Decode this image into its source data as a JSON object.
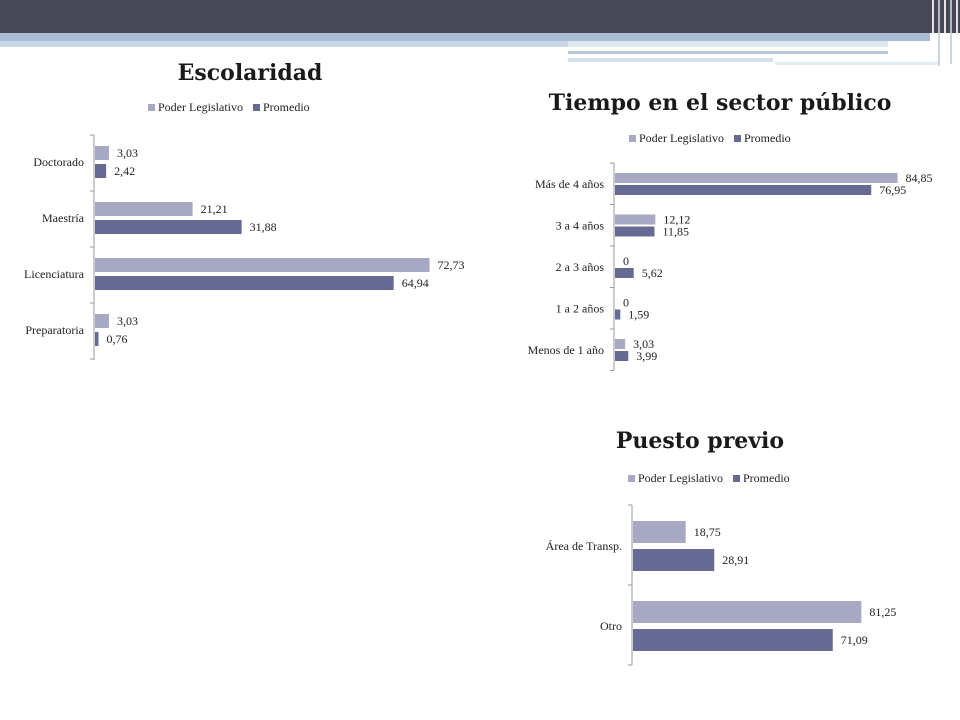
{
  "colors": {
    "poder_legislativo": "#a7a9c2",
    "promedio": "#656b92",
    "axis": "#9a9a9a"
  },
  "chart_data": [
    {
      "type": "bar",
      "orientation": "horizontal",
      "title": "Escolaridad",
      "legend": [
        "Poder Legislativo",
        "Promedio"
      ],
      "legend_position": "top",
      "categories": [
        "Doctorado",
        "Maestría",
        "Licenciatura",
        "Preparatoria"
      ],
      "series": [
        {
          "name": "Poder Legislativo",
          "values": [
            3.03,
            21.21,
            72.73,
            3.03
          ],
          "labels": [
            "3,03",
            "21,21",
            "72,73",
            "3,03"
          ]
        },
        {
          "name": "Promedio",
          "values": [
            2.42,
            31.88,
            64.94,
            0.76
          ],
          "labels": [
            "2,42",
            "31,88",
            "64,94",
            "0,76"
          ]
        }
      ],
      "xlim": [
        0,
        80
      ],
      "grid": false
    },
    {
      "type": "bar",
      "orientation": "horizontal",
      "title": "Tiempo en el sector público",
      "legend": [
        "Poder Legislativo",
        "Promedio"
      ],
      "legend_position": "top",
      "categories": [
        "Más de 4 años",
        "3 a 4 años",
        "2 a 3 años",
        "1 a 2 años",
        "Menos de 1 año"
      ],
      "series": [
        {
          "name": "Poder Legislativo",
          "values": [
            84.85,
            12.12,
            0,
            0,
            3.03
          ],
          "labels": [
            "84,85",
            "12,12",
            "0",
            "0",
            "3,03"
          ]
        },
        {
          "name": "Promedio",
          "values": [
            76.95,
            11.85,
            5.62,
            1.59,
            3.99
          ],
          "labels": [
            "76,95",
            "11,85",
            "5,62",
            "1,59",
            "3,99"
          ]
        }
      ],
      "xlim": [
        0,
        90
      ],
      "grid": false
    },
    {
      "type": "bar",
      "orientation": "horizontal",
      "title": "Puesto previo",
      "legend": [
        "Poder Legislativo",
        "Promedio"
      ],
      "legend_position": "top",
      "categories": [
        "Área de Transp.",
        "Otro"
      ],
      "series": [
        {
          "name": "Poder Legislativo",
          "values": [
            18.75,
            81.25
          ],
          "labels": [
            "18,75",
            "81,25"
          ]
        },
        {
          "name": "Promedio",
          "values": [
            28.91,
            71.09
          ],
          "labels": [
            "28,91",
            "71,09"
          ]
        }
      ],
      "xlim": [
        0,
        85
      ],
      "grid": false
    }
  ]
}
